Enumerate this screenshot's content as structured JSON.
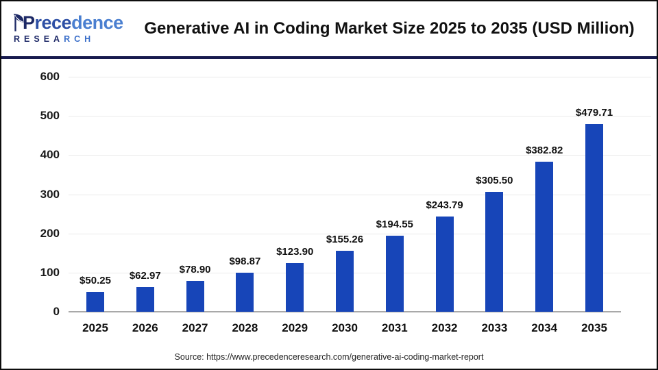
{
  "header": {
    "logo": {
      "name_part1": "P",
      "name_part2": "rece",
      "name_part3": "dence",
      "sub_part1": "RESEA",
      "sub_part2": "RCH"
    },
    "title": "Generative AI in Coding Market Size 2025 to 2035 (USD Million)"
  },
  "chart_data": {
    "type": "bar",
    "title": "Generative AI in Coding Market Size 2025 to 2035 (USD Million)",
    "categories": [
      "2025",
      "2026",
      "2027",
      "2028",
      "2029",
      "2030",
      "2031",
      "2032",
      "2033",
      "2034",
      "2035"
    ],
    "values": [
      50.25,
      62.97,
      78.9,
      98.87,
      123.9,
      155.26,
      194.55,
      243.79,
      305.5,
      382.82,
      479.71
    ],
    "value_labels": [
      "$50.25",
      "$62.97",
      "$78.90",
      "$98.87",
      "$123.90",
      "$155.26",
      "$194.55",
      "$243.79",
      "$305.50",
      "$382.82",
      "$479.71"
    ],
    "xlabel": "",
    "ylabel": "",
    "ylim": [
      0,
      600
    ],
    "yticks": [
      0,
      100,
      200,
      300,
      400,
      500,
      600
    ],
    "grid": true,
    "legend": "none",
    "bar_color": "#1745b8",
    "gridline_color": "#e9e9e9",
    "axis_line_color": "#a9a9a9"
  },
  "footer": {
    "source": "Source: https://www.precedenceresearch.com/generative-ai-coding-market-report"
  }
}
